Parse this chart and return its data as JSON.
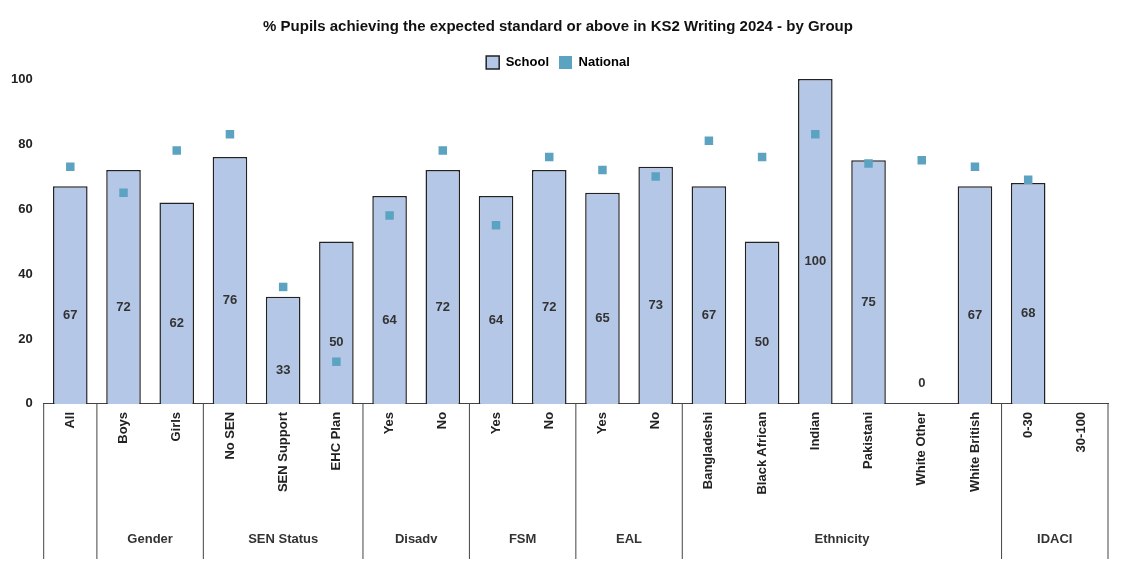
{
  "chart_data": {
    "type": "bar",
    "title": "% Pupils achieving the expected standard or above in KS2 Writing 2024 - by Group",
    "categories": [
      "All",
      "Boys",
      "Girls",
      "No SEN",
      "SEN Support",
      "EHC Plan",
      "Yes",
      "No",
      "Yes",
      "No",
      "Yes",
      "No",
      "Bangladeshi",
      "Black African",
      "Indian",
      "Pakistani",
      "White Other",
      "White British",
      "0-30",
      "30-100"
    ],
    "series": [
      {
        "name": "School",
        "color": "#b4c7e7",
        "values": [
          67,
          72,
          62,
          76,
          33,
          50,
          64,
          72,
          64,
          72,
          65,
          73,
          67,
          50,
          100,
          75,
          0,
          67,
          68,
          null
        ],
        "value_labels": [
          "67",
          "72",
          "62",
          "76",
          "33",
          "50",
          "64",
          "72",
          "64",
          "72",
          "65",
          "73",
          "67",
          "50",
          "100",
          "75",
          "0",
          "67",
          "68",
          null
        ]
      },
      {
        "name": "National",
        "type": "scatter",
        "marker": "square",
        "color": "#5ba3c0",
        "values": [
          73,
          65,
          78,
          83,
          36,
          13,
          58,
          78,
          55,
          76,
          72,
          70,
          81,
          76,
          83,
          74,
          75,
          73,
          69,
          null
        ]
      }
    ],
    "annotations": [
      "Gender",
      "SEN Status",
      "Disadv",
      "FSM",
      "EAL",
      "Ethnicity",
      "IDACI"
    ],
    "ylim": [
      0,
      100
    ],
    "yticks": [
      0,
      20,
      40,
      60,
      80,
      100
    ],
    "grid": false,
    "legend": "top"
  }
}
